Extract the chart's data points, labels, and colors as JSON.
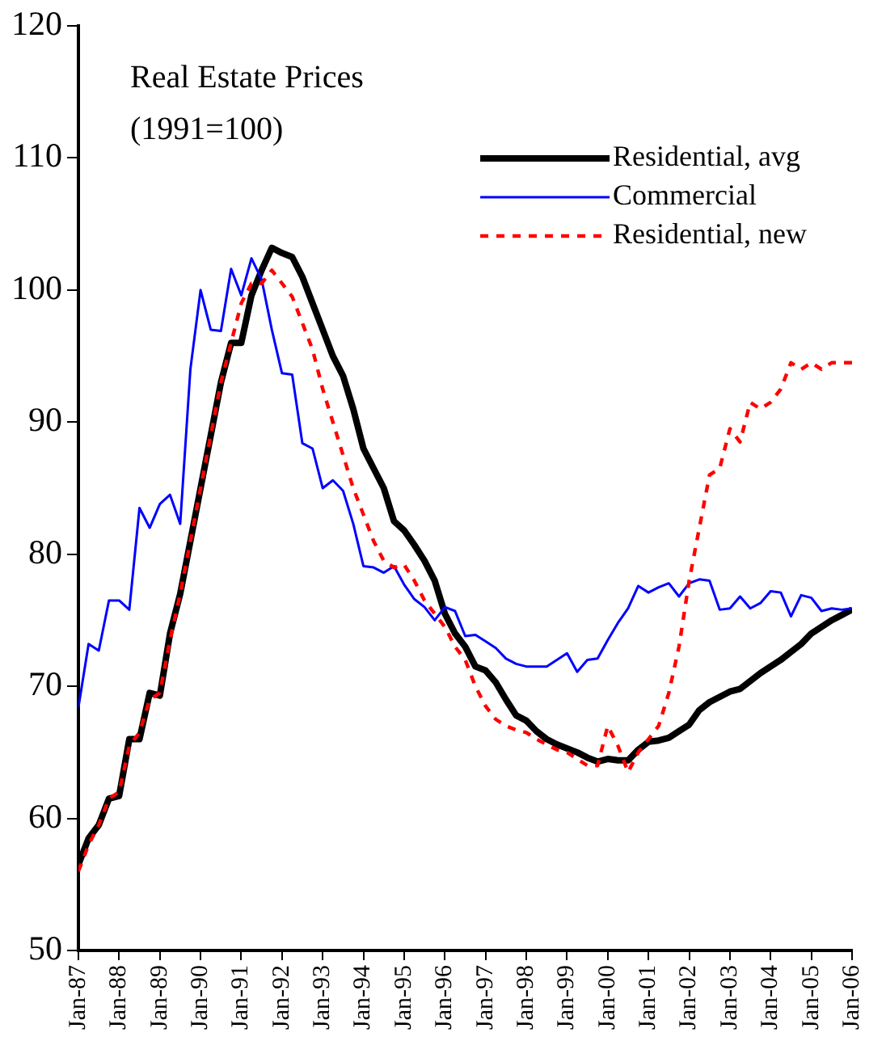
{
  "chart_data": {
    "type": "line",
    "annotations": [
      "Real Estate Prices",
      "(1991=100)"
    ],
    "x": [
      "1987-01",
      "1987-04",
      "1987-07",
      "1987-10",
      "1988-01",
      "1988-04",
      "1988-07",
      "1988-10",
      "1989-01",
      "1989-04",
      "1989-07",
      "1989-10",
      "1990-01",
      "1990-04",
      "1990-07",
      "1990-10",
      "1991-01",
      "1991-04",
      "1991-07",
      "1991-10",
      "1992-01",
      "1992-04",
      "1992-07",
      "1992-10",
      "1993-01",
      "1993-04",
      "1993-07",
      "1993-10",
      "1994-01",
      "1994-04",
      "1994-07",
      "1994-10",
      "1995-01",
      "1995-04",
      "1995-07",
      "1995-10",
      "1996-01",
      "1996-04",
      "1996-07",
      "1996-10",
      "1997-01",
      "1997-04",
      "1997-07",
      "1997-10",
      "1998-01",
      "1998-04",
      "1998-07",
      "1998-10",
      "1999-01",
      "1999-04",
      "1999-07",
      "1999-10",
      "2000-01",
      "2000-04",
      "2000-07",
      "2000-10",
      "2001-01",
      "2001-04",
      "2001-07",
      "2001-10",
      "2002-01",
      "2002-04",
      "2002-07",
      "2002-10",
      "2003-01",
      "2003-04",
      "2003-07",
      "2003-10",
      "2004-01",
      "2004-04",
      "2004-07",
      "2004-10",
      "2005-01",
      "2005-04",
      "2005-07",
      "2005-10",
      "2006-01"
    ],
    "series": [
      {
        "name": "Residential, avg",
        "color": "#000000",
        "values": [
          56.5,
          58.5,
          59.5,
          61.5,
          61.7,
          66,
          66,
          69.5,
          69.3,
          74,
          77,
          81,
          85,
          89,
          93,
          96,
          96,
          99.6,
          101.5,
          103.2,
          102.8,
          102.5,
          101,
          99,
          97,
          95,
          93.5,
          91,
          88,
          86.5,
          85,
          82.5,
          81.8,
          80.7,
          79.5,
          78,
          75.5,
          74,
          73,
          71.5,
          71.2,
          70.3,
          69,
          67.8,
          67.4,
          66.6,
          66,
          65.6,
          65.3,
          65,
          64.6,
          64.3,
          64.5,
          64.4,
          64.4,
          65.2,
          65.8,
          65.9,
          66.1,
          66.6,
          67.1,
          68.2,
          68.8,
          69.2,
          69.6,
          69.8,
          70.4,
          71,
          71.5,
          72,
          72.6,
          73.2,
          74,
          74.5,
          75,
          75.4,
          75.8
        ]
      },
      {
        "name": "Commercial",
        "color": "#0000ff",
        "values": [
          68.4,
          73.2,
          72.7,
          76.5,
          76.5,
          75.8,
          83.5,
          82,
          83.8,
          84.5,
          82.3,
          94,
          100,
          97,
          96.9,
          101.6,
          99.6,
          102.4,
          100.8,
          97,
          93.7,
          93.6,
          88.4,
          88,
          85,
          85.6,
          84.8,
          82.3,
          79.1,
          79,
          78.6,
          79.1,
          77.7,
          76.6,
          76,
          75,
          76,
          75.7,
          73.8,
          73.9,
          73.4,
          72.9,
          72.1,
          71.7,
          71.5,
          71.5,
          71.5,
          72,
          72.5,
          71.1,
          72,
          72.1,
          73.5,
          74.8,
          75.9,
          77.6,
          77.1,
          77.5,
          77.8,
          76.8,
          77.8,
          78.1,
          78,
          75.8,
          75.9,
          76.8,
          75.9,
          76.3,
          77.2,
          77.1,
          75.3,
          76.9,
          76.7,
          75.7,
          75.9,
          75.8,
          75.9
        ]
      },
      {
        "name": "Residential, new",
        "color": "#ff0000",
        "line_style": "dashed",
        "values": [
          56,
          58,
          59.5,
          61.5,
          62,
          65.5,
          66.5,
          69,
          69.5,
          73.5,
          77,
          81,
          85,
          89,
          93,
          96,
          99,
          100.5,
          100.5,
          101.5,
          100.5,
          99.5,
          97.5,
          95.5,
          92.5,
          90,
          87.5,
          85,
          83,
          81,
          79.5,
          79,
          79.2,
          78,
          76.5,
          75.5,
          74.5,
          73,
          72,
          70,
          68.5,
          67.5,
          67,
          66.7,
          66.5,
          66,
          65.6,
          65.2,
          65,
          64.5,
          64,
          64,
          67,
          65.5,
          63.5,
          65,
          66,
          67,
          69.5,
          73,
          78,
          82,
          86,
          86.5,
          89.5,
          88.5,
          91.5,
          91,
          91.5,
          92.5,
          94.5,
          94,
          94.5,
          94,
          94.5,
          94.5,
          94.5
        ]
      }
    ],
    "xlim": [
      "1987-01",
      "2006-01"
    ],
    "xticks": [
      {
        "value": "1987-01",
        "label": "Jan-87"
      },
      {
        "value": "1988-01",
        "label": "Jan-88"
      },
      {
        "value": "1989-01",
        "label": "Jan-89"
      },
      {
        "value": "1990-01",
        "label": "Jan-90"
      },
      {
        "value": "1991-01",
        "label": "Jan-91"
      },
      {
        "value": "1992-01",
        "label": "Jan-92"
      },
      {
        "value": "1993-01",
        "label": "Jan-93"
      },
      {
        "value": "1994-01",
        "label": "Jan-94"
      },
      {
        "value": "1995-01",
        "label": "Jan-95"
      },
      {
        "value": "1996-01",
        "label": "Jan-96"
      },
      {
        "value": "1997-01",
        "label": "Jan-97"
      },
      {
        "value": "1998-01",
        "label": "Jan-98"
      },
      {
        "value": "1999-01",
        "label": "Jan-99"
      },
      {
        "value": "2000-01",
        "label": "Jan-00"
      },
      {
        "value": "2001-01",
        "label": "Jan-01"
      },
      {
        "value": "2002-01",
        "label": "Jan-02"
      },
      {
        "value": "2003-01",
        "label": "Jan-03"
      },
      {
        "value": "2004-01",
        "label": "Jan-04"
      },
      {
        "value": "2005-01",
        "label": "Jan-05"
      },
      {
        "value": "2006-01",
        "label": "Jan-06"
      }
    ],
    "ylim": [
      50,
      120
    ],
    "yticks": [
      50,
      60,
      70,
      80,
      90,
      100,
      110,
      120
    ],
    "grid": false,
    "legend": "top right",
    "marker": "none"
  }
}
